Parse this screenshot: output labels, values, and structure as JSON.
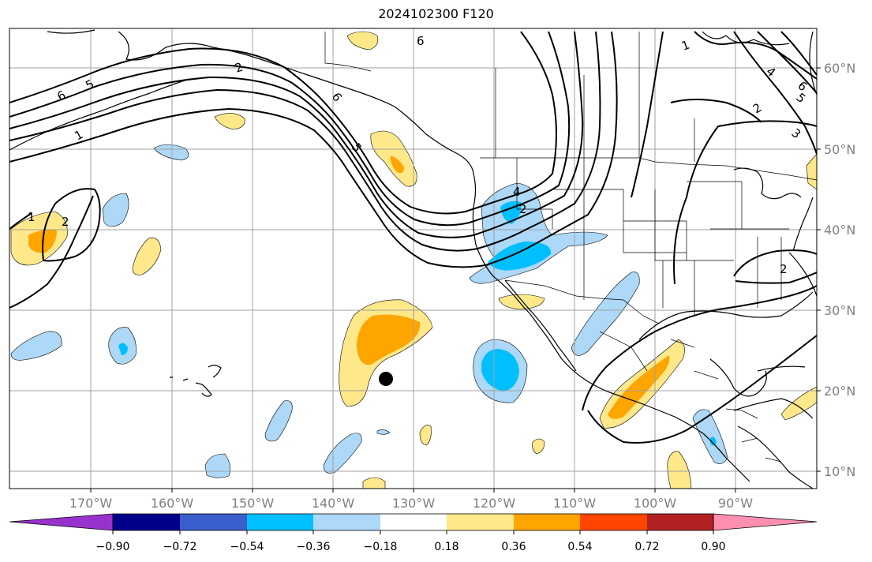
{
  "title": "2024102300 F120",
  "map": {
    "lon_labels": [
      "170°W",
      "160°W",
      "150°W",
      "140°W",
      "130°W",
      "120°W",
      "110°W",
      "100°W",
      "90°W"
    ],
    "lat_labels": [
      "60°N",
      "50°N",
      "40°N",
      "30°N",
      "20°N",
      "10°N"
    ],
    "contour_labels": [
      "6",
      "5",
      "1",
      "6",
      "6",
      "5",
      "4",
      "2",
      "1",
      "2",
      "1",
      "2",
      "2",
      "4",
      "5",
      "6",
      "3",
      "2"
    ],
    "marker": "storm-position-dot"
  },
  "colorbar": {
    "tick_labels": [
      "−0.90",
      "−0.72",
      "−0.54",
      "−0.36",
      "−0.18",
      "0.18",
      "0.36",
      "0.54",
      "0.72",
      "0.90"
    ],
    "colors": [
      "#9932cc",
      "#00008b",
      "#3a5fcd",
      "#00bfff",
      "#add8f7",
      "#ffffff",
      "#ffe88a",
      "#ffa500",
      "#ff4500",
      "#b22222",
      "#ff8fb1"
    ]
  }
}
